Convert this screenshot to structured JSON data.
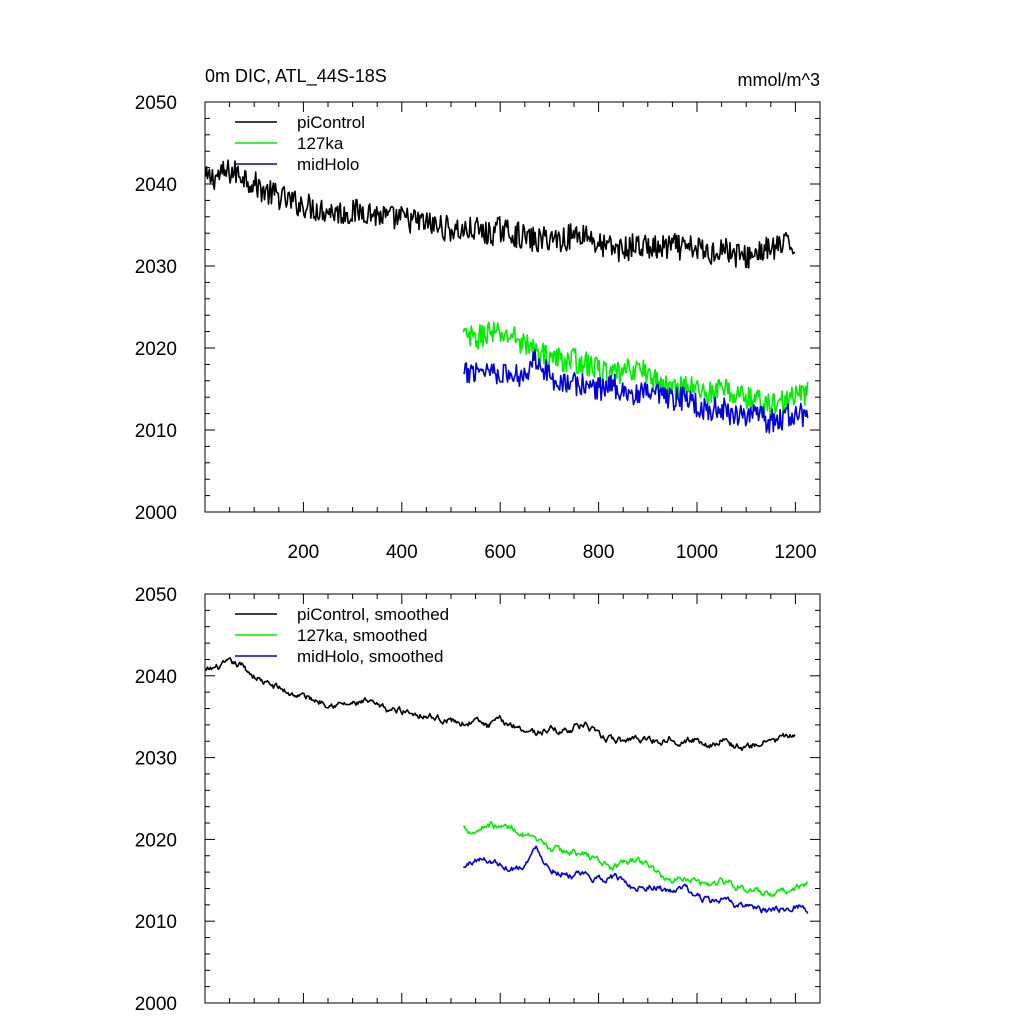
{
  "chart_data": [
    {
      "type": "line",
      "title": "0m DIC, ATL_44S-18S",
      "units": "mmol/m^3",
      "xlabel": "",
      "ylabel": "",
      "xlim": [
        0,
        1250
      ],
      "ylim": [
        2000,
        2050
      ],
      "xticks": [
        200,
        400,
        600,
        800,
        1000,
        1200
      ],
      "xtick_labels": [
        "200",
        "400",
        "600",
        "800",
        "1000",
        "1200"
      ],
      "yticks": [
        2000,
        2010,
        2020,
        2030,
        2040,
        2050
      ],
      "ytick_labels": [
        "2000",
        "2010",
        "2020",
        "2030",
        "2040",
        "2050"
      ],
      "grid": false,
      "legend_position": "top-left",
      "series": [
        {
          "name": "piControl",
          "color": "#000000",
          "x": [
            1,
            25,
            50,
            75,
            100,
            125,
            150,
            175,
            200,
            225,
            250,
            275,
            300,
            325,
            350,
            375,
            400,
            425,
            450,
            475,
            500,
            525,
            550,
            575,
            600,
            625,
            650,
            675,
            700,
            725,
            750,
            775,
            800,
            825,
            850,
            875,
            900,
            925,
            950,
            975,
            1000,
            1025,
            1050,
            1075,
            1100,
            1125,
            1150,
            1175,
            1200
          ],
          "y": [
            2040.5,
            2041.0,
            2041.5,
            2041.2,
            2040.0,
            2039.0,
            2038.5,
            2037.8,
            2037.5,
            2037.0,
            2036.8,
            2036.5,
            2036.5,
            2036.8,
            2036.2,
            2035.8,
            2035.8,
            2035.5,
            2035.2,
            2034.8,
            2034.5,
            2034.2,
            2034.5,
            2033.8,
            2034.5,
            2034.0,
            2033.5,
            2033.0,
            2033.5,
            2033.2,
            2033.8,
            2034.0,
            2032.5,
            2032.2,
            2032.0,
            2032.5,
            2032.3,
            2032.0,
            2032.5,
            2032.0,
            2032.2,
            2031.5,
            2032.3,
            2031.5,
            2031.0,
            2031.8,
            2032.0,
            2032.5,
            2032.5
          ],
          "noise": 1.6
        },
        {
          "name": "127ka",
          "color": "#00ee00",
          "x": [
            525,
            550,
            575,
            600,
            625,
            650,
            675,
            700,
            725,
            750,
            775,
            800,
            825,
            850,
            875,
            900,
            925,
            950,
            975,
            1000,
            1025,
            1050,
            1075,
            1100,
            1125,
            1150,
            1175,
            1200,
            1225
          ],
          "y": [
            2021.5,
            2021.0,
            2022.0,
            2021.5,
            2021.5,
            2020.5,
            2019.5,
            2019.0,
            2018.5,
            2018.5,
            2018.0,
            2017.5,
            2016.5,
            2017.0,
            2017.5,
            2017.0,
            2015.5,
            2015.0,
            2015.5,
            2015.0,
            2014.5,
            2015.0,
            2014.5,
            2014.0,
            2013.5,
            2013.0,
            2013.5,
            2014.0,
            2014.5
          ],
          "noise": 1.5
        },
        {
          "name": "midHolo",
          "color": "#0000dd",
          "x": [
            525,
            550,
            575,
            600,
            625,
            650,
            675,
            700,
            725,
            750,
            775,
            800,
            825,
            850,
            875,
            900,
            925,
            950,
            975,
            1000,
            1025,
            1050,
            1075,
            1100,
            1125,
            1150,
            1175,
            1200,
            1225
          ],
          "y": [
            2016.5,
            2017.5,
            2017.5,
            2017.0,
            2016.5,
            2017.0,
            2019.0,
            2016.5,
            2016.0,
            2015.5,
            2015.5,
            2015.0,
            2015.5,
            2015.0,
            2014.0,
            2014.5,
            2014.0,
            2013.5,
            2014.0,
            2013.0,
            2012.5,
            2012.5,
            2012.0,
            2012.0,
            2011.5,
            2011.0,
            2011.5,
            2012.0,
            2011.5
          ],
          "noise": 1.5
        }
      ]
    },
    {
      "type": "line",
      "title": "",
      "xlabel": "",
      "ylabel": "",
      "xlim": [
        0,
        1250
      ],
      "ylim": [
        2000,
        2050
      ],
      "xticks": [
        200,
        400,
        600,
        800,
        1000,
        1200
      ],
      "xtick_labels": [],
      "yticks": [
        2000,
        2010,
        2020,
        2030,
        2040,
        2050
      ],
      "ytick_labels": [
        "2000",
        "2010",
        "2020",
        "2030",
        "2040",
        "2050"
      ],
      "grid": false,
      "legend_position": "top-left",
      "series": [
        {
          "name": "piControl, smoothed",
          "color": "#000000",
          "x": [
            1,
            25,
            50,
            75,
            100,
            125,
            150,
            175,
            200,
            225,
            250,
            275,
            300,
            325,
            350,
            375,
            400,
            425,
            450,
            475,
            500,
            525,
            550,
            575,
            600,
            625,
            650,
            675,
            700,
            725,
            750,
            775,
            800,
            825,
            850,
            875,
            900,
            925,
            950,
            975,
            1000,
            1025,
            1050,
            1075,
            1100,
            1125,
            1150,
            1175,
            1200
          ],
          "y": [
            2040.5,
            2041.0,
            2041.5,
            2041.2,
            2040.0,
            2039.0,
            2038.5,
            2037.8,
            2037.5,
            2037.0,
            2036.8,
            2036.5,
            2036.5,
            2036.8,
            2036.2,
            2035.8,
            2035.8,
            2035.5,
            2035.2,
            2034.8,
            2034.5,
            2034.2,
            2034.5,
            2033.8,
            2034.5,
            2034.0,
            2033.5,
            2033.0,
            2033.5,
            2033.2,
            2033.8,
            2034.0,
            2032.5,
            2032.2,
            2032.0,
            2032.5,
            2032.3,
            2032.0,
            2032.5,
            2032.0,
            2032.2,
            2031.5,
            2032.3,
            2031.5,
            2031.0,
            2031.8,
            2032.0,
            2032.5,
            2032.5
          ],
          "noise": 0.6
        },
        {
          "name": "127ka, smoothed",
          "color": "#00ee00",
          "x": [
            525,
            550,
            575,
            600,
            625,
            650,
            675,
            700,
            725,
            750,
            775,
            800,
            825,
            850,
            875,
            900,
            925,
            950,
            975,
            1000,
            1025,
            1050,
            1075,
            1100,
            1125,
            1150,
            1175,
            1200,
            1225
          ],
          "y": [
            2021.5,
            2021.0,
            2022.0,
            2021.5,
            2021.5,
            2020.5,
            2019.5,
            2019.0,
            2018.5,
            2018.5,
            2018.0,
            2017.5,
            2016.5,
            2017.0,
            2017.5,
            2017.0,
            2015.5,
            2015.0,
            2015.5,
            2015.0,
            2014.5,
            2015.0,
            2014.5,
            2014.0,
            2013.5,
            2013.0,
            2013.5,
            2014.0,
            2014.5
          ],
          "noise": 0.6
        },
        {
          "name": "midHolo, smoothed",
          "color": "#0000dd",
          "x": [
            525,
            550,
            575,
            600,
            625,
            650,
            675,
            700,
            725,
            750,
            775,
            800,
            825,
            850,
            875,
            900,
            925,
            950,
            975,
            1000,
            1025,
            1050,
            1075,
            1100,
            1125,
            1150,
            1175,
            1200,
            1225
          ],
          "y": [
            2016.5,
            2017.5,
            2017.5,
            2017.0,
            2016.5,
            2017.0,
            2019.0,
            2016.5,
            2016.0,
            2015.5,
            2015.5,
            2015.0,
            2015.5,
            2015.0,
            2014.0,
            2014.5,
            2014.0,
            2013.5,
            2014.0,
            2013.0,
            2012.5,
            2012.5,
            2012.0,
            2012.0,
            2011.5,
            2011.0,
            2011.5,
            2012.0,
            2011.5
          ],
          "noise": 0.6
        }
      ]
    }
  ]
}
